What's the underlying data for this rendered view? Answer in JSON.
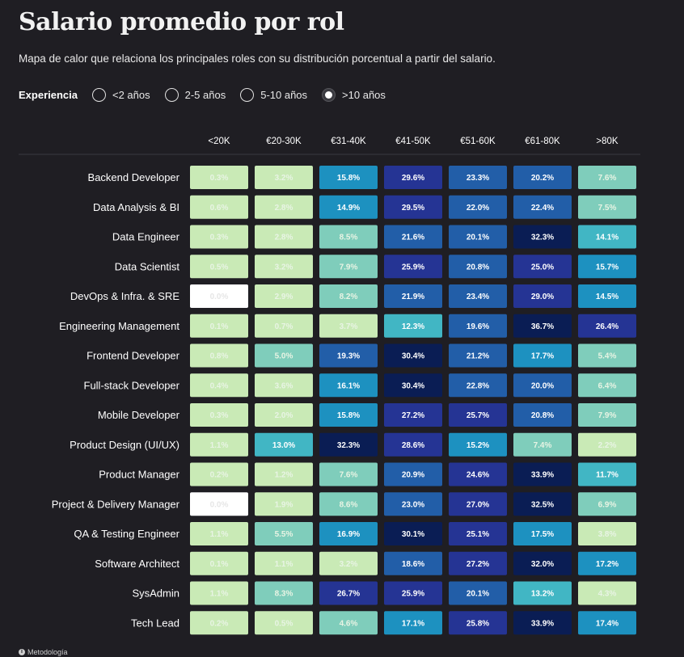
{
  "header": {
    "title": "Salario promedio por rol",
    "subtitle": "Mapa de calor que relaciona los principales roles con su distribución porcentual a partir del salario."
  },
  "filter": {
    "label": "Experiencia",
    "options": [
      {
        "label": "<2 años",
        "selected": false
      },
      {
        "label": "2-5 años",
        "selected": false
      },
      {
        "label": "5-10 años",
        "selected": false
      },
      {
        "label": ">10 años",
        "selected": true
      }
    ]
  },
  "footer": {
    "link_label": "Metodología",
    "icon": "info-icon"
  },
  "colors": {
    "background": "#1f1e23",
    "scale": [
      "#ffffff",
      "#c9eab6",
      "#7fcdbb",
      "#41b6c4",
      "#1d91c0",
      "#225ea8",
      "#253494",
      "#0a1d54"
    ],
    "scale_thresholds_percent": [
      0.01,
      4.5,
      10,
      14.5,
      18.5,
      24,
      30
    ]
  },
  "chart_data": {
    "type": "heatmap",
    "title": "Salario promedio por rol",
    "columns": [
      "<20K",
      "€20-30K",
      "€31-40K",
      "€41-50K",
      "€51-60K",
      "€61-80K",
      ">80K"
    ],
    "rows": [
      {
        "role": "Backend Developer",
        "values": [
          0.3,
          3.2,
          15.8,
          29.6,
          23.3,
          20.2,
          7.6
        ]
      },
      {
        "role": "Data Analysis & BI",
        "values": [
          0.6,
          2.8,
          14.9,
          29.5,
          22.0,
          22.4,
          7.5
        ]
      },
      {
        "role": "Data Engineer",
        "values": [
          0.3,
          2.8,
          8.5,
          21.6,
          20.1,
          32.3,
          14.1
        ]
      },
      {
        "role": "Data Scientist",
        "values": [
          0.5,
          3.2,
          7.9,
          25.9,
          20.8,
          25.0,
          15.7
        ]
      },
      {
        "role": "DevOps & Infra. & SRE",
        "values": [
          0.0,
          2.9,
          8.2,
          21.9,
          23.4,
          29.0,
          14.5
        ]
      },
      {
        "role": "Engineering Management",
        "values": [
          0.1,
          0.7,
          3.7,
          12.3,
          19.6,
          36.7,
          26.4
        ]
      },
      {
        "role": "Frontend Developer",
        "values": [
          0.8,
          5.0,
          19.3,
          30.4,
          21.2,
          17.7,
          5.4
        ]
      },
      {
        "role": "Full-stack Developer",
        "values": [
          0.4,
          3.6,
          16.1,
          30.4,
          22.8,
          20.0,
          6.4
        ]
      },
      {
        "role": "Mobile Developer",
        "values": [
          0.3,
          2.0,
          15.8,
          27.2,
          25.7,
          20.8,
          7.9
        ]
      },
      {
        "role": "Product Design (UI/UX)",
        "values": [
          1.1,
          13.0,
          32.3,
          28.6,
          15.2,
          7.4,
          2.2
        ]
      },
      {
        "role": "Product Manager",
        "values": [
          0.2,
          1.2,
          7.6,
          20.9,
          24.6,
          33.9,
          11.7
        ]
      },
      {
        "role": "Project & Delivery Manager",
        "values": [
          0.0,
          1.9,
          8.6,
          23.0,
          27.0,
          32.5,
          6.9
        ]
      },
      {
        "role": "QA & Testing Engineer",
        "values": [
          1.1,
          5.5,
          16.9,
          30.1,
          25.1,
          17.5,
          3.8
        ]
      },
      {
        "role": "Software Architect",
        "values": [
          0.1,
          1.1,
          3.2,
          18.6,
          27.2,
          32.0,
          17.2
        ]
      },
      {
        "role": "SysAdmin",
        "values": [
          1.1,
          8.3,
          26.7,
          25.9,
          20.1,
          13.2,
          4.3
        ]
      },
      {
        "role": "Tech Lead",
        "values": [
          0.2,
          0.5,
          4.6,
          17.1,
          25.8,
          33.9,
          17.4
        ]
      }
    ],
    "value_suffix": "%",
    "legend": "none"
  }
}
